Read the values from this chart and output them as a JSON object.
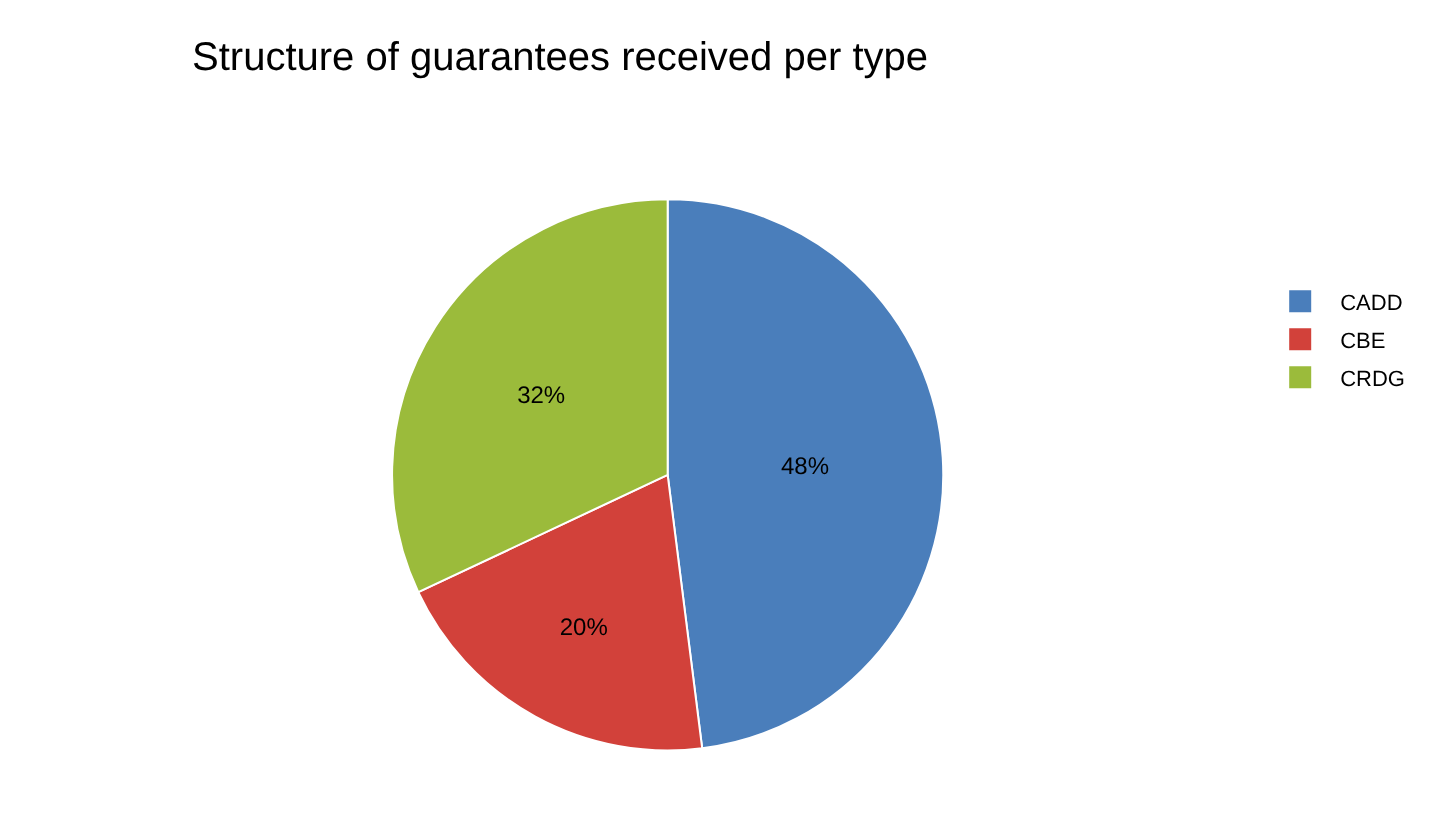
{
  "chart_data": {
    "type": "pie",
    "title": "Structure of guarantees received per type",
    "categories": [
      "CADD",
      "CBE",
      "CRDG"
    ],
    "values": [
      48,
      20,
      32
    ],
    "value_labels": [
      "48%",
      "20%",
      "32%"
    ],
    "colors": [
      "#4a7ebb",
      "#d2413a",
      "#9bbb3b"
    ],
    "legend": "right"
  }
}
